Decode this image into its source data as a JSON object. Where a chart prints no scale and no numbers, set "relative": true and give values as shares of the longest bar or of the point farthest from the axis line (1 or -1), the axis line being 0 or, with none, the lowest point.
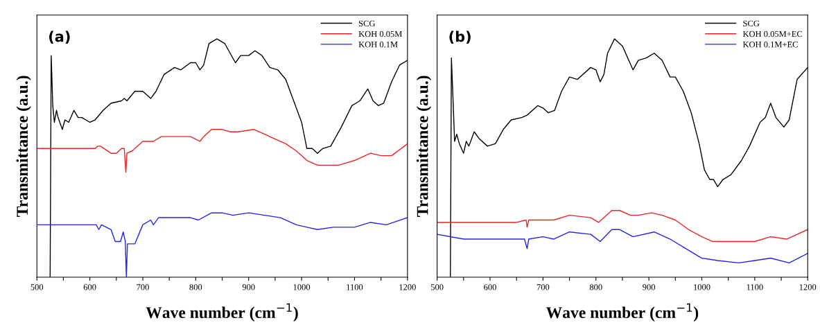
{
  "chart_data": [
    {
      "type": "line",
      "relative": true,
      "annotations": [
        "(a)"
      ],
      "xlabel": "Wave number (cm$^{−1}$)",
      "ylabel": "Transmittance (a.u.)",
      "xlim": [
        500,
        1200
      ],
      "xticks": [
        500,
        {
          "value": 550,
          "label": null
        },
        600,
        {
          "value": 650,
          "label": null
        },
        700,
        {
          "value": 750,
          "label": null
        },
        800,
        {
          "value": 850,
          "label": null
        },
        900,
        {
          "value": 950,
          "label": null
        },
        1000,
        {
          "value": 1050,
          "label": null
        },
        1100,
        {
          "value": 1150,
          "label": null
        },
        1200
      ],
      "legend": "top right",
      "grid": false,
      "tick_labels": "x",
      "line_style": "solid",
      "marker": "none",
      "series": [
        {
          "name": "SCG",
          "color": "#000000",
          "x": [
            525,
            527,
            530,
            533,
            537,
            540,
            548,
            553,
            560,
            570,
            578,
            585,
            600,
            610,
            625,
            640,
            660,
            665,
            670,
            685,
            700,
            715,
            725,
            740,
            760,
            772,
            790,
            800,
            808,
            815,
            825,
            840,
            855,
            865,
            875,
            885,
            900,
            912,
            925,
            940,
            955,
            970,
            985,
            1000,
            1010,
            1020,
            1030,
            1040,
            1055,
            1075,
            1095,
            1110,
            1125,
            1135,
            1145,
            1155,
            1170,
            1185,
            1200
          ],
          "values": [
            0,
            0.93,
            0.72,
            0.65,
            0.7,
            0.67,
            0.62,
            0.66,
            0.65,
            0.7,
            0.67,
            0.67,
            0.65,
            0.66,
            0.7,
            0.73,
            0.74,
            0.75,
            0.74,
            0.78,
            0.78,
            0.75,
            0.78,
            0.85,
            0.88,
            0.87,
            0.9,
            0.9,
            0.87,
            0.89,
            0.98,
            1.0,
            0.98,
            0.94,
            0.9,
            0.93,
            0.93,
            0.95,
            0.93,
            0.88,
            0.87,
            0.83,
            0.74,
            0.65,
            0.54,
            0.54,
            0.52,
            0.54,
            0.55,
            0.63,
            0.72,
            0.74,
            0.79,
            0.74,
            0.72,
            0.73,
            0.82,
            0.89,
            0.91
          ]
        },
        {
          "name": "KOH 0.05M",
          "color": "#ee2222",
          "x": [
            500,
            610,
            615,
            620,
            640,
            650,
            660,
            665,
            668,
            670,
            680,
            700,
            715,
            720,
            735,
            760,
            790,
            808,
            815,
            830,
            850,
            865,
            880,
            910,
            930,
            950,
            970,
            990,
            1010,
            1030,
            1050,
            1070,
            1100,
            1130,
            1150,
            1170,
            1200
          ],
          "values": [
            0.54,
            0.54,
            0.55,
            0.55,
            0.52,
            0.52,
            0.54,
            0.54,
            0.44,
            0.52,
            0.53,
            0.57,
            0.57,
            0.57,
            0.59,
            0.59,
            0.59,
            0.57,
            0.59,
            0.62,
            0.62,
            0.61,
            0.61,
            0.62,
            0.6,
            0.58,
            0.56,
            0.53,
            0.49,
            0.47,
            0.47,
            0.47,
            0.49,
            0.52,
            0.51,
            0.51,
            0.56
          ]
        },
        {
          "name": "KOH 0.1M",
          "color": "#2222ee",
          "x": [
            500,
            612,
            617,
            622,
            640,
            648,
            658,
            663,
            667,
            669,
            671,
            685,
            700,
            715,
            720,
            730,
            760,
            790,
            805,
            830,
            850,
            870,
            900,
            930,
            960,
            990,
            1010,
            1030,
            1060,
            1100,
            1130,
            1160,
            1200
          ],
          "values": [
            0.22,
            0.22,
            0.2,
            0.22,
            0.2,
            0.15,
            0.15,
            0.19,
            0.15,
            0.0,
            0.14,
            0.14,
            0.22,
            0.24,
            0.22,
            0.25,
            0.25,
            0.25,
            0.24,
            0.27,
            0.27,
            0.26,
            0.27,
            0.26,
            0.25,
            0.22,
            0.21,
            0.2,
            0.21,
            0.21,
            0.23,
            0.22,
            0.25
          ]
        }
      ]
    },
    {
      "type": "line",
      "relative": true,
      "annotations": [
        "(b)"
      ],
      "xlabel": "Wave number (cm$^{−1}$)",
      "ylabel": "Transmittance (a.u.)",
      "xlim": [
        500,
        1200
      ],
      "xticks": [
        500,
        {
          "value": 550,
          "label": null
        },
        600,
        {
          "value": 650,
          "label": null
        },
        700,
        {
          "value": 750,
          "label": null
        },
        800,
        {
          "value": 850,
          "label": null
        },
        900,
        {
          "value": 950,
          "label": null
        },
        1000,
        {
          "value": 1050,
          "label": null
        },
        1100,
        {
          "value": 1150,
          "label": null
        },
        1200
      ],
      "legend": "top right",
      "grid": false,
      "tick_labels": "x",
      "line_style": "solid",
      "marker": "none",
      "series": [
        {
          "name": "SCG",
          "color": "#000000",
          "x": [
            525,
            527,
            530,
            533,
            537,
            542,
            550,
            555,
            560,
            570,
            580,
            595,
            610,
            625,
            640,
            660,
            670,
            690,
            700,
            710,
            722,
            735,
            750,
            765,
            790,
            800,
            808,
            815,
            822,
            835,
            850,
            862,
            870,
            880,
            895,
            910,
            925,
            940,
            950,
            965,
            980,
            995,
            1005,
            1015,
            1022,
            1030,
            1040,
            1055,
            1075,
            1090,
            1110,
            1120,
            1130,
            1140,
            1155,
            1165,
            1180,
            1200
          ],
          "values": [
            0,
            0.92,
            0.75,
            0.57,
            0.6,
            0.56,
            0.52,
            0.57,
            0.55,
            0.61,
            0.58,
            0.55,
            0.56,
            0.62,
            0.66,
            0.67,
            0.68,
            0.72,
            0.71,
            0.69,
            0.7,
            0.78,
            0.84,
            0.83,
            0.88,
            0.87,
            0.82,
            0.85,
            0.94,
            1.0,
            0.97,
            0.91,
            0.87,
            0.91,
            0.92,
            0.94,
            0.91,
            0.84,
            0.84,
            0.78,
            0.69,
            0.56,
            0.45,
            0.41,
            0.41,
            0.38,
            0.41,
            0.43,
            0.49,
            0.55,
            0.65,
            0.67,
            0.73,
            0.67,
            0.63,
            0.66,
            0.83,
            0.88
          ]
        },
        {
          "name": "KOH 0.05M+EC",
          "color": "#ee2222",
          "x": [
            500,
            600,
            620,
            650,
            668,
            670,
            673,
            700,
            720,
            750,
            790,
            805,
            815,
            830,
            845,
            865,
            880,
            905,
            925,
            950,
            975,
            1000,
            1020,
            1060,
            1100,
            1130,
            1160,
            1200
          ],
          "values": [
            0.23,
            0.23,
            0.23,
            0.23,
            0.24,
            0.21,
            0.24,
            0.24,
            0.24,
            0.26,
            0.25,
            0.23,
            0.25,
            0.28,
            0.28,
            0.26,
            0.26,
            0.27,
            0.26,
            0.24,
            0.2,
            0.17,
            0.15,
            0.15,
            0.15,
            0.17,
            0.16,
            0.2
          ]
        },
        {
          "name": "KOH 0.1M+EC",
          "color": "#2222ee",
          "x": [
            500,
            550,
            600,
            665,
            670,
            673,
            700,
            720,
            750,
            790,
            808,
            830,
            845,
            870,
            910,
            940,
            970,
            1000,
            1030,
            1070,
            1100,
            1130,
            1165,
            1200
          ],
          "values": [
            0.18,
            0.16,
            0.16,
            0.16,
            0.12,
            0.16,
            0.17,
            0.16,
            0.19,
            0.18,
            0.15,
            0.2,
            0.2,
            0.17,
            0.19,
            0.16,
            0.12,
            0.08,
            0.07,
            0.06,
            0.07,
            0.08,
            0.06,
            0.1
          ]
        }
      ]
    }
  ]
}
